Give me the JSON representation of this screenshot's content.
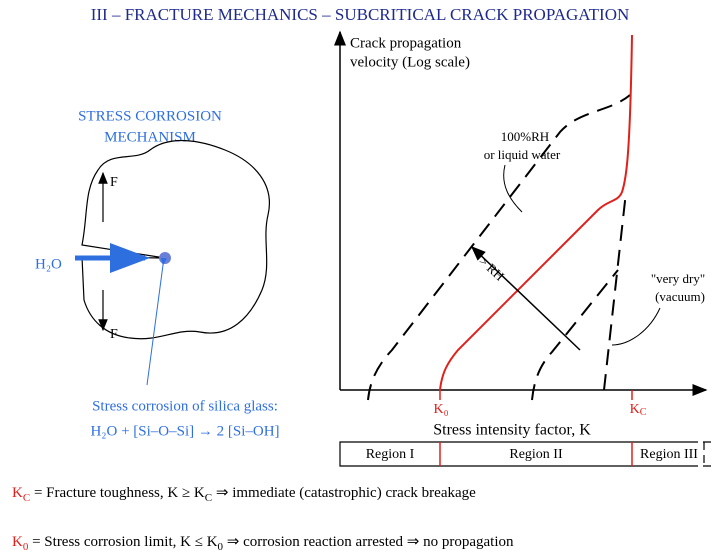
{
  "title": "III – FRACTURE MECHANICS – SUBCRITICAL CRACK PROPAGATION",
  "mechanism": {
    "heading": [
      "STRESS CORROSION",
      "MECHANISM"
    ],
    "force_top": "F",
    "force_bottom": "F",
    "water": "H₂O",
    "caption": [
      "Stress corrosion of silica glass:",
      "H₂O + [Si–O–Si] → 2 [Si–OH]"
    ]
  },
  "plot": {
    "y_label": [
      "Crack propagation",
      "velocity (Log scale)"
    ],
    "wet_label": [
      "100%RH",
      "or liquid water"
    ],
    "rh_arrow": "> RH",
    "dry_label": [
      "\"very dry\"",
      "(vacuum)"
    ],
    "k0": "K₀",
    "kc": "K",
    "kc_sub": "C",
    "x_label": "Stress intensity factor, K",
    "regions": [
      "Region I",
      "Region II",
      "Region III"
    ]
  },
  "notes": [
    [
      "K",
      "C",
      " = Fracture toughness,   K ≥ K",
      "C",
      " ⇒ immediate (catastrophic) crack breakage"
    ],
    [
      "K",
      "0",
      " = Stress corrosion limit, K ≤ K",
      "0",
      " ⇒ corrosion reaction arrested ⇒ no propagation"
    ]
  ]
}
